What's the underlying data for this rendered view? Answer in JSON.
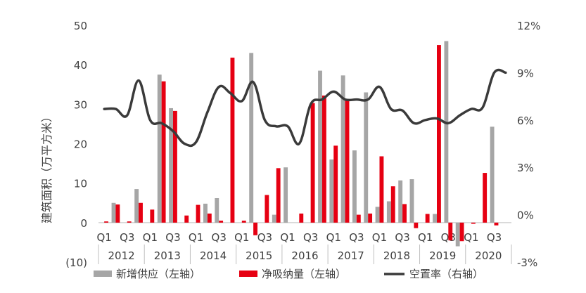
{
  "chart_data": {
    "type": "bar",
    "ylabel": "建筑面积（万平方米）",
    "left_axis": {
      "min": -10,
      "max": 50,
      "step": 10,
      "tick_labels": [
        "(10)",
        "0",
        "10",
        "20",
        "30",
        "40",
        "50"
      ]
    },
    "right_axis": {
      "min": -3,
      "max": 12,
      "step": 3,
      "unit": "%",
      "tick_labels": [
        "-3%",
        "0%",
        "3%",
        "6%",
        "9%",
        "12%"
      ]
    },
    "quarter_labels": [
      "Q1",
      "Q3",
      "Q1",
      "Q3",
      "Q1",
      "Q3",
      "Q1",
      "Q3",
      "Q1",
      "Q3",
      "Q1",
      "Q3",
      "Q1",
      "Q3",
      "Q1",
      "Q3",
      "Q1",
      "Q3"
    ],
    "year_labels": [
      "2012",
      "2013",
      "2014",
      "2015",
      "2016",
      "2017",
      "2018",
      "2019",
      "2020"
    ],
    "categories": [
      "2012Q1",
      "2012Q2",
      "2012Q3",
      "2012Q4",
      "2013Q1",
      "2013Q2",
      "2013Q3",
      "2013Q4",
      "2014Q1",
      "2014Q2",
      "2014Q3",
      "2014Q4",
      "2015Q1",
      "2015Q2",
      "2015Q3",
      "2015Q4",
      "2016Q1",
      "2016Q2",
      "2016Q3",
      "2016Q4",
      "2017Q1",
      "2017Q2",
      "2017Q3",
      "2017Q4",
      "2018Q1",
      "2018Q2",
      "2018Q3",
      "2018Q4",
      "2019Q1",
      "2019Q2",
      "2019Q3",
      "2019Q4",
      "2020Q1",
      "2020Q2",
      "2020Q3",
      "2020Q4"
    ],
    "series": [
      {
        "name": "新增供应（左轴）",
        "axis": "left",
        "kind": "bar",
        "color": "#a6a6a6",
        "values": [
          0,
          5,
          0,
          8.5,
          0,
          37.5,
          29,
          0,
          0,
          4.8,
          6.2,
          0,
          0,
          43,
          0,
          2,
          14,
          0,
          0,
          38.5,
          16,
          37.3,
          18.3,
          33,
          4,
          5.4,
          10.7,
          11,
          0,
          2.2,
          46,
          -6,
          0,
          0,
          24.3,
          0
        ]
      },
      {
        "name": "净吸纳量（左轴）",
        "axis": "left",
        "kind": "bar",
        "color": "#e60012",
        "values": [
          0.3,
          4.6,
          0.3,
          5,
          3.3,
          35.8,
          28.3,
          1.8,
          4.5,
          2.3,
          0.5,
          41.8,
          0.5,
          -3.2,
          7,
          13.8,
          0,
          2.3,
          30.3,
          32.2,
          19.5,
          31,
          2,
          2.3,
          16.8,
          9.2,
          4.7,
          -1.4,
          2.2,
          45,
          -4.5,
          -4.7,
          -0.3,
          12.6,
          -0.7,
          0
        ]
      },
      {
        "name": "空置率（右轴）",
        "axis": "right",
        "kind": "line",
        "color": "#3a3a3a",
        "values": [
          6.7,
          6.7,
          6.3,
          8.5,
          6.0,
          5.8,
          5.3,
          4.5,
          4.6,
          6.5,
          8.1,
          7.7,
          7.2,
          8.4,
          6.0,
          5.6,
          5.6,
          4.5,
          7.0,
          7.3,
          7.8,
          7.3,
          7.3,
          7.3,
          8.1,
          6.7,
          6.6,
          5.8,
          6.0,
          6.1,
          5.8,
          6.3,
          6.7,
          6.8,
          9.0,
          9.0
        ]
      }
    ],
    "legend": {
      "position": "bottom",
      "items": [
        "新增供应（左轴）",
        "净吸纳量（左轴）",
        "空置率（右轴）"
      ]
    },
    "grid": false
  }
}
